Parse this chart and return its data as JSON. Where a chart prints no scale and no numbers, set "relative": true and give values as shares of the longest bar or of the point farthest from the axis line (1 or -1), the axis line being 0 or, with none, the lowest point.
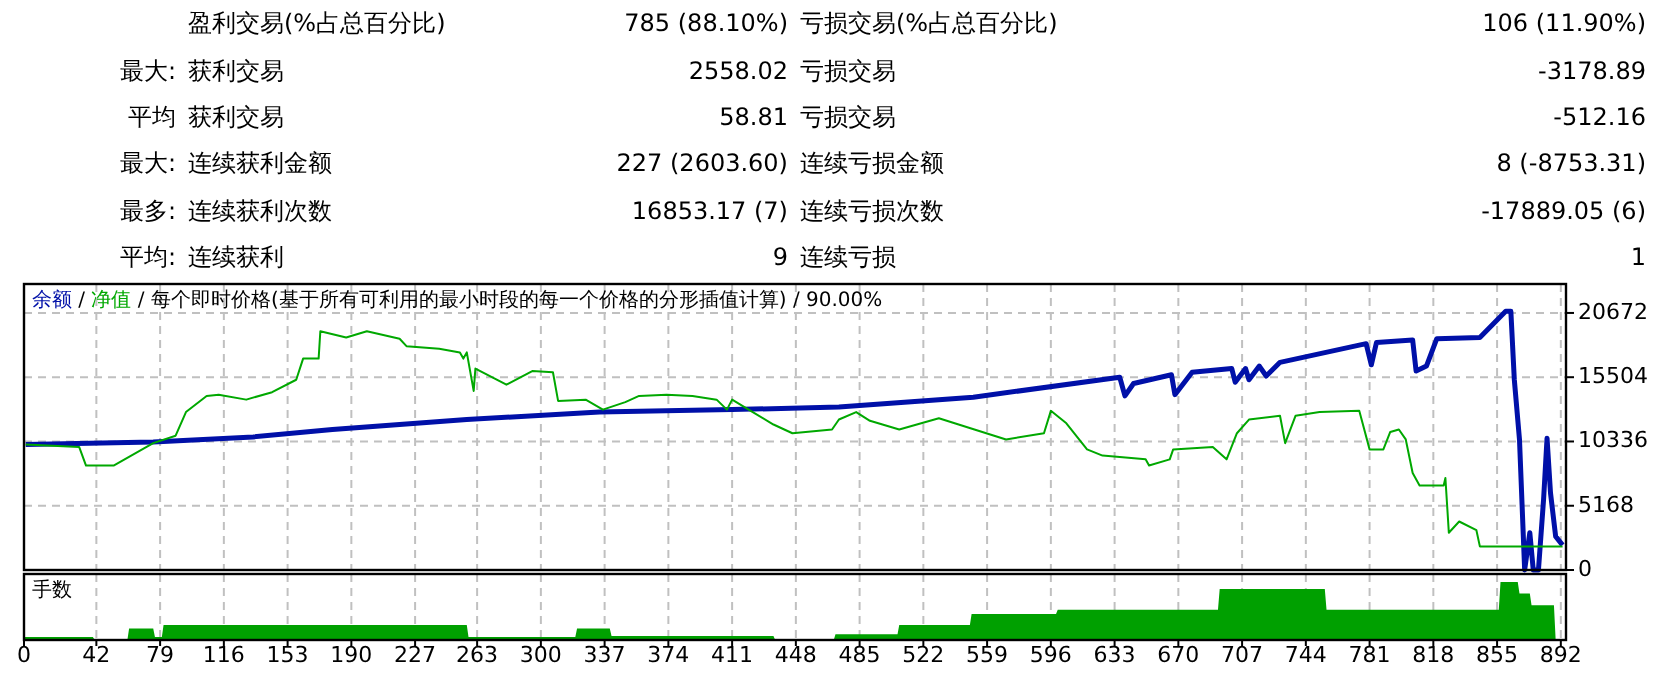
{
  "chart_data": [
    {
      "type": "other",
      "annotations": [
        "盈利交易(%占总百分比)",
        "785 (88.10%)",
        "亏损交易(%占总百分比)",
        "106 (11.90%)",
        "最大:",
        "获利交易",
        "2558.02",
        "亏损交易",
        "-3178.89",
        "平均",
        "获利交易",
        "58.81",
        "亏损交易",
        "-512.16",
        "最大:",
        "连续获利金额",
        "227 (2603.60)",
        "连续亏损金额",
        "8 (-8753.31)",
        "最多:",
        "连续获利次数",
        "16853.17 (7)",
        "连续亏损次数",
        "-17889.05 (6)",
        "平均:",
        "连续获利",
        "9",
        "连续亏损",
        "1"
      ]
    },
    {
      "type": "line",
      "title": "每个即时价格(基于所有可利用的最小时段的每一个价格的分形插值计算) / 90.00%",
      "annotations": [
        "/",
        "/"
      ],
      "legend": "top left",
      "grid": true,
      "tick_labels": "y",
      "xlim": [
        0,
        895
      ],
      "xticks": [
        0,
        42,
        79,
        116,
        153,
        190,
        227,
        263,
        300,
        337,
        374,
        411,
        448,
        485,
        522,
        559,
        596,
        633,
        670,
        707,
        744,
        781,
        818,
        855,
        892
      ],
      "ylim": [
        0,
        23000
      ],
      "yticks": [
        0,
        5168,
        10336,
        15504,
        20672
      ],
      "series": [
        {
          "name": "余额",
          "color": "#0010a8",
          "x": [
            1,
            75,
            133,
            179,
            257,
            334,
            411,
            473,
            551,
            636,
            639,
            644,
            666,
            668,
            678,
            701,
            703,
            709,
            711,
            717,
            721,
            729,
            779,
            782,
            785,
            806,
            808,
            814,
            820,
            845,
            855,
            860,
            863,
            865,
            868,
            871,
            874,
            876,
            879,
            882,
            884,
            886,
            889,
            893
          ],
          "values": [
            10100,
            10300,
            10700,
            11300,
            12100,
            12700,
            12900,
            13100,
            13900,
            15500,
            14000,
            15000,
            15700,
            14100,
            15900,
            16200,
            15100,
            16200,
            15300,
            16400,
            15600,
            16700,
            18200,
            16500,
            18300,
            18500,
            16000,
            16400,
            18600,
            18700,
            20100,
            20800,
            20800,
            15300,
            10500,
            0,
            3000,
            0,
            0,
            5700,
            10600,
            6200,
            2700,
            2000
          ]
        },
        {
          "name": "净值",
          "color": "#00a800",
          "x": [
            1,
            32,
            36,
            52,
            75,
            88,
            94,
            106,
            113,
            129,
            144,
            158,
            162,
            171,
            172,
            187,
            199,
            218,
            222,
            241,
            253,
            255,
            257,
            261,
            262,
            280,
            295,
            307,
            310,
            326,
            336,
            349,
            357,
            373,
            388,
            402,
            408,
            411,
            423,
            435,
            446,
            469,
            473,
            483,
            491,
            508,
            531,
            570,
            592,
            596,
            605,
            617,
            626,
            651,
            653,
            665,
            667,
            690,
            698,
            704,
            711,
            729,
            732,
            738,
            752,
            775,
            781,
            789,
            793,
            798,
            802,
            806,
            810,
            824,
            825,
            827,
            833,
            843,
            845,
            893
          ],
          "values": [
            10100,
            9900,
            8400,
            8400,
            10200,
            10800,
            12700,
            14000,
            14100,
            13700,
            14300,
            15300,
            17000,
            17000,
            19200,
            18700,
            19200,
            18600,
            18000,
            17800,
            17500,
            17000,
            17500,
            14400,
            16200,
            14900,
            16000,
            15900,
            13600,
            13700,
            12900,
            13500,
            14000,
            14100,
            14000,
            13700,
            12900,
            13700,
            12700,
            11700,
            11000,
            11300,
            12100,
            12700,
            12000,
            11300,
            12200,
            10500,
            11000,
            12800,
            11800,
            9700,
            9200,
            8900,
            8400,
            8900,
            9700,
            9900,
            8900,
            11000,
            12100,
            12400,
            10200,
            12400,
            12700,
            12800,
            9700,
            9700,
            11100,
            11300,
            10500,
            7800,
            6800,
            6800,
            7400,
            3000,
            3900,
            3200,
            1900,
            1900
          ]
        }
      ]
    },
    {
      "type": "area",
      "title": "手数",
      "relative": true,
      "grid": "x",
      "tick_labels": "x",
      "xlim": [
        0,
        895
      ],
      "xticks": [
        0,
        42,
        79,
        116,
        153,
        190,
        227,
        263,
        300,
        337,
        374,
        411,
        448,
        485,
        522,
        559,
        596,
        633,
        670,
        707,
        744,
        781,
        818,
        855,
        892
      ],
      "series": [
        {
          "color": "#00a000",
          "x": [
            0,
            40,
            41,
            60,
            61,
            75,
            76,
            80,
            81,
            257,
            258,
            320,
            321,
            340,
            341,
            435,
            436,
            470,
            471,
            507,
            508,
            549,
            550,
            599,
            600,
            693,
            694,
            755,
            756,
            856,
            857,
            867,
            868,
            874,
            875,
            888,
            889
          ],
          "values": [
            0.05,
            0.05,
            0,
            0,
            0.2,
            0.2,
            0.05,
            0.05,
            0.26,
            0.26,
            0.05,
            0.05,
            0.2,
            0.2,
            0.07,
            0.07,
            0,
            0,
            0.1,
            0.1,
            0.26,
            0.26,
            0.45,
            0.45,
            0.52,
            0.52,
            0.88,
            0.88,
            0.52,
            0.52,
            1,
            1,
            0.8,
            0.8,
            0.6,
            0.6,
            0
          ]
        }
      ]
    }
  ]
}
